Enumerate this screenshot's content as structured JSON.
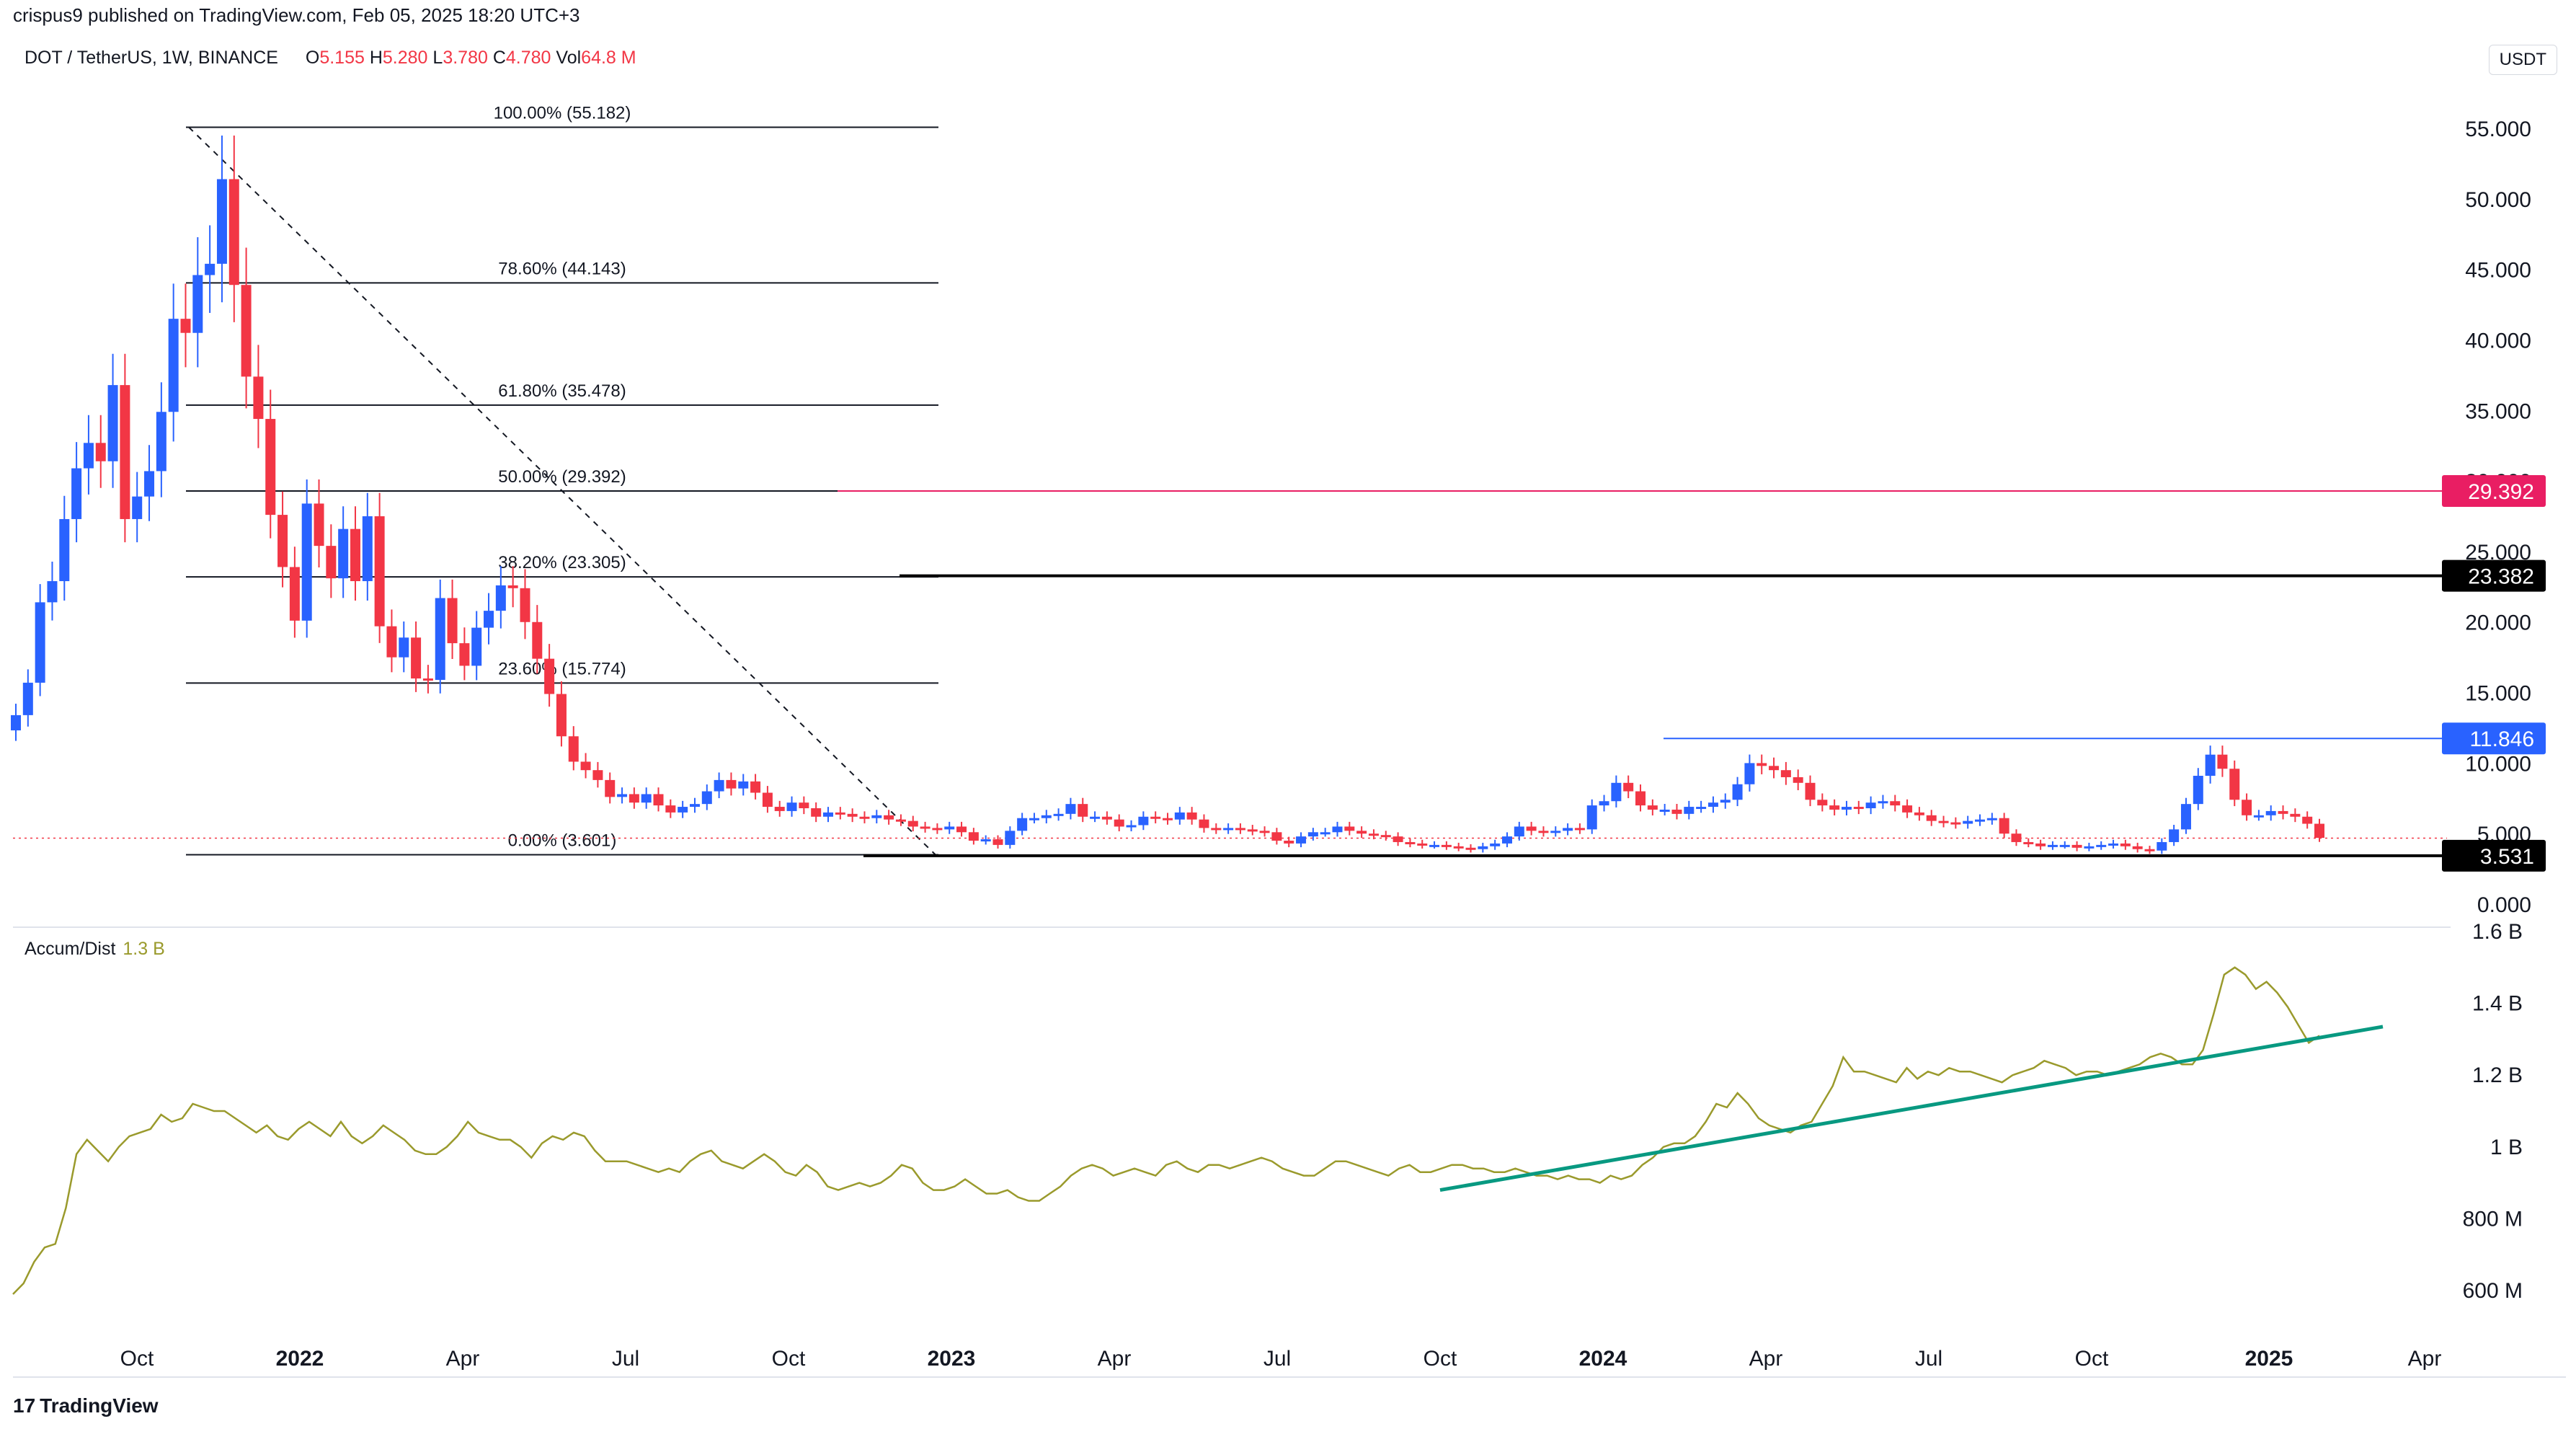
{
  "header": {
    "attribution": "crispus9 published on TradingView.com, Feb 05, 2025 18:20 UTC+3"
  },
  "symbol_bar": {
    "symbol": "DOT / TetherUS, 1W, BINANCE",
    "open_label": "O",
    "open": "5.155",
    "high_label": "H",
    "high": "5.280",
    "low_label": "L",
    "low": "3.780",
    "close_label": "C",
    "close": "4.780",
    "vol_label": "Vol",
    "vol": "64.8 M"
  },
  "currency": "USDT",
  "indicator": {
    "name": "Accum/Dist",
    "value": "1.3 B"
  },
  "brand": {
    "logo_glyph": "17",
    "name": "TradingView"
  },
  "colors": {
    "up": "#2962ff",
    "down": "#f23645",
    "pink": "#e91e63",
    "blue": "#2962ff",
    "ad_line": "#9a9a2c",
    "trendline": "#089981",
    "black": "#000000"
  },
  "chart_data": [
    {
      "type": "candlestick",
      "title": "DOT / TetherUS, 1W, BINANCE",
      "y_ticks": [
        "55.000",
        "50.000",
        "45.000",
        "40.000",
        "35.000",
        "30.000",
        "25.000",
        "20.000",
        "15.000",
        "10.000",
        "5.000",
        "0.000"
      ],
      "ylim": [
        0,
        60
      ],
      "x_ticks": [
        "Oct",
        "2022",
        "Apr",
        "Jul",
        "Oct",
        "2023",
        "Apr",
        "Jul",
        "Oct",
        "2024",
        "Apr",
        "Jul",
        "Oct",
        "2025",
        "Apr"
      ],
      "close_series": [
        13.5,
        15.8,
        21.5,
        23.0,
        27.4,
        31.0,
        32.8,
        31.5,
        36.9,
        27.4,
        29.0,
        30.8,
        35.0,
        41.6,
        40.6,
        44.7,
        45.5,
        51.5,
        44.0,
        37.5,
        34.5,
        27.7,
        24.0,
        20.2,
        28.5,
        25.5,
        23.2,
        26.7,
        23.0,
        27.6,
        19.8,
        17.6,
        19.0,
        16.1,
        16.0,
        21.8,
        18.6,
        17.0,
        19.7,
        20.9,
        22.7,
        22.5,
        20.1,
        17.5,
        15.0,
        12.0,
        10.2,
        9.6,
        8.9,
        7.7,
        7.9,
        7.3,
        7.9,
        7.1,
        6.6,
        7.0,
        7.2,
        8.1,
        8.9,
        8.3,
        8.8,
        8.0,
        7.0,
        6.7,
        7.3,
        6.9,
        6.3,
        6.6,
        6.5,
        6.3,
        6.2,
        6.4,
        6.1,
        6.0,
        5.6,
        5.5,
        5.4,
        5.6,
        5.2,
        4.6,
        4.7,
        4.3,
        5.3,
        6.2,
        6.2,
        6.4,
        6.5,
        7.2,
        6.3,
        6.3,
        6.1,
        5.6,
        5.7,
        6.3,
        6.2,
        6.1,
        6.6,
        6.1,
        5.5,
        5.4,
        5.5,
        5.4,
        5.3,
        5.2,
        4.6,
        4.4,
        4.9,
        5.2,
        5.2,
        5.6,
        5.3,
        5.1,
        5.0,
        4.9,
        4.5,
        4.4,
        4.3,
        4.3,
        4.2,
        4.1,
        4.0,
        4.2,
        4.4,
        4.9,
        5.6,
        5.3,
        5.2,
        5.3,
        5.5,
        5.4,
        7.1,
        7.4,
        8.7,
        8.1,
        7.1,
        6.8,
        6.8,
        6.5,
        7.0,
        7.0,
        7.3,
        7.5,
        8.6,
        10.1,
        9.9,
        9.6,
        9.1,
        8.7,
        7.5,
        7.1,
        6.8,
        7.0,
        6.9,
        7.3,
        7.4,
        7.1,
        6.6,
        6.4,
        6.0,
        5.9,
        5.8,
        6.0,
        6.1,
        6.2,
        5.1,
        4.5,
        4.4,
        4.2,
        4.3,
        4.3,
        4.1,
        4.2,
        4.3,
        4.4,
        4.2,
        4.0,
        3.9,
        4.5,
        5.4,
        7.2,
        9.2,
        10.7,
        9.7,
        7.5,
        6.4,
        6.4,
        6.7,
        6.5,
        6.3,
        5.8,
        4.8
      ]
    },
    {
      "type": "line",
      "title": "Accum/Dist",
      "y_ticks": [
        "1.6 B",
        "1.4 B",
        "1.2 B",
        "1 B",
        "800 M",
        "600 M"
      ],
      "ylim": [
        0.52,
        1.62
      ],
      "unit": "B",
      "values": [
        0.59,
        0.62,
        0.68,
        0.72,
        0.73,
        0.83,
        0.98,
        1.02,
        0.99,
        0.96,
        1.0,
        1.03,
        1.04,
        1.05,
        1.09,
        1.07,
        1.08,
        1.12,
        1.11,
        1.1,
        1.1,
        1.08,
        1.06,
        1.04,
        1.06,
        1.03,
        1.02,
        1.05,
        1.07,
        1.05,
        1.03,
        1.07,
        1.03,
        1.01,
        1.03,
        1.06,
        1.04,
        1.02,
        0.99,
        0.98,
        0.98,
        1.0,
        1.03,
        1.07,
        1.04,
        1.03,
        1.02,
        1.02,
        1.0,
        0.97,
        1.01,
        1.03,
        1.02,
        1.04,
        1.03,
        0.99,
        0.96,
        0.96,
        0.96,
        0.95,
        0.94,
        0.93,
        0.94,
        0.93,
        0.96,
        0.98,
        0.99,
        0.96,
        0.95,
        0.94,
        0.96,
        0.98,
        0.96,
        0.93,
        0.92,
        0.95,
        0.93,
        0.89,
        0.88,
        0.89,
        0.9,
        0.89,
        0.9,
        0.92,
        0.95,
        0.94,
        0.9,
        0.88,
        0.88,
        0.89,
        0.91,
        0.89,
        0.87,
        0.87,
        0.88,
        0.86,
        0.85,
        0.85,
        0.87,
        0.89,
        0.92,
        0.94,
        0.95,
        0.94,
        0.92,
        0.93,
        0.94,
        0.93,
        0.92,
        0.95,
        0.96,
        0.94,
        0.93,
        0.95,
        0.95,
        0.94,
        0.95,
        0.96,
        0.97,
        0.96,
        0.94,
        0.93,
        0.92,
        0.92,
        0.94,
        0.96,
        0.96,
        0.95,
        0.94,
        0.93,
        0.92,
        0.94,
        0.95,
        0.93,
        0.93,
        0.94,
        0.95,
        0.95,
        0.94,
        0.94,
        0.93,
        0.93,
        0.94,
        0.93,
        0.92,
        0.92,
        0.91,
        0.92,
        0.91,
        0.91,
        0.9,
        0.92,
        0.91,
        0.92,
        0.95,
        0.97,
        1.0,
        1.01,
        1.01,
        1.03,
        1.07,
        1.12,
        1.11,
        1.15,
        1.12,
        1.08,
        1.06,
        1.05,
        1.04,
        1.06,
        1.07,
        1.12,
        1.17,
        1.25,
        1.21,
        1.21,
        1.2,
        1.19,
        1.18,
        1.22,
        1.19,
        1.21,
        1.2,
        1.22,
        1.21,
        1.21,
        1.2,
        1.19,
        1.18,
        1.2,
        1.21,
        1.22,
        1.24,
        1.23,
        1.22,
        1.2,
        1.21,
        1.21,
        1.2,
        1.21,
        1.22,
        1.23,
        1.25,
        1.26,
        1.25,
        1.23,
        1.23,
        1.27,
        1.37,
        1.48,
        1.5,
        1.48,
        1.44,
        1.46,
        1.43,
        1.39,
        1.34,
        1.29,
        1.31
      ]
    }
  ],
  "fib_levels": [
    {
      "label": "100.00% (55.182)",
      "value": 55.182
    },
    {
      "label": "78.60% (44.143)",
      "value": 44.143
    },
    {
      "label": "61.80% (35.478)",
      "value": 35.478
    },
    {
      "label": "50.00% (29.392)",
      "value": 29.392
    },
    {
      "label": "38.20% (23.305)",
      "value": 23.305
    },
    {
      "label": "23.60% (15.774)",
      "value": 15.774
    },
    {
      "label": "0.00% (3.601)",
      "value": 3.601
    }
  ],
  "price_tags": [
    {
      "label": "29.392",
      "value": 29.392,
      "color": "#e91e63"
    },
    {
      "label": "23.382",
      "value": 23.382,
      "color": "#000000"
    },
    {
      "label": "11.846",
      "value": 11.846,
      "color": "#2962ff"
    },
    {
      "label": "3.531",
      "value": 3.531,
      "color": "#000000"
    }
  ]
}
